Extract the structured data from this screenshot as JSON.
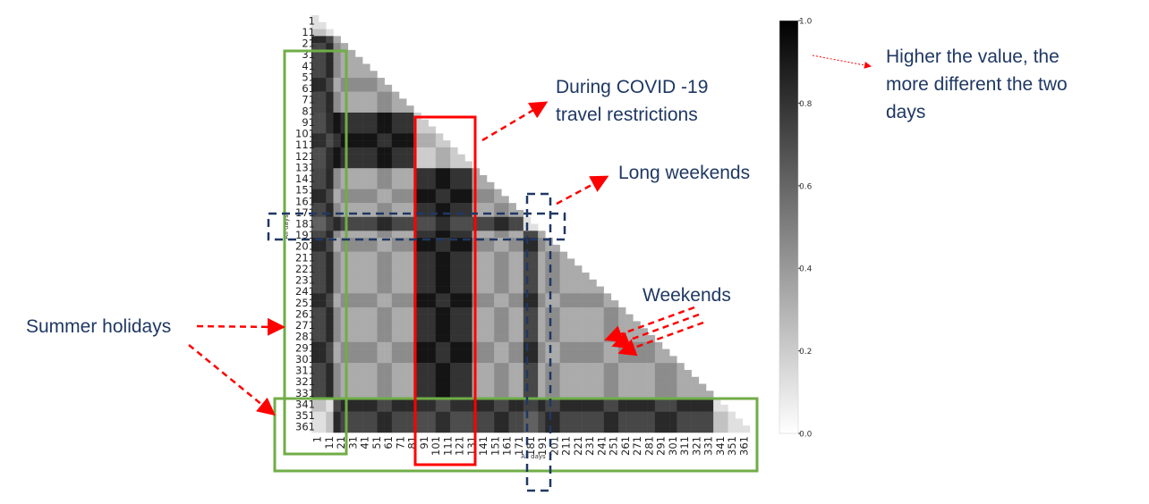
{
  "chart_data": {
    "type": "heatmap",
    "shape": "lower-triangle",
    "xlabel": "All days",
    "ylabel": "All days",
    "tick_labels": [
      "1",
      "11",
      "21",
      "31",
      "41",
      "51",
      "61",
      "71",
      "81",
      "91",
      "101",
      "111",
      "121",
      "131",
      "141",
      "151",
      "161",
      "171",
      "181",
      "191",
      "201",
      "211",
      "221",
      "231",
      "241",
      "251",
      "261",
      "271",
      "281",
      "291",
      "301",
      "311",
      "321",
      "331",
      "341",
      "351",
      "361"
    ],
    "day_range": [
      1,
      365
    ],
    "colorbar": {
      "min": 0.0,
      "max": 1.0,
      "ticks": [
        "0.0",
        "0.2",
        "0.4",
        "0.6",
        "0.8",
        "1.0"
      ],
      "colormap": "white-to-black"
    },
    "weekly_cycle_days": 7,
    "regions": [
      {
        "name": "Summer holidays",
        "days": [
          1,
          21
        ]
      },
      {
        "name": "Summer holidays",
        "days": [
          335,
          365
        ]
      },
      {
        "name": "During COVID -19 travel restrictions",
        "days": [
          88,
          133
        ]
      },
      {
        "name": "Long weekends",
        "days": [
          177,
          190
        ]
      }
    ]
  },
  "annotations": {
    "covid": [
      "During COVID -19",
      "travel restrictions"
    ],
    "long_weekends": "Long weekends",
    "weekends": "Weekends",
    "summer": "Summer holidays",
    "higher": [
      "Higher the value, the",
      "more different the two",
      "days"
    ]
  },
  "colors": {
    "green_box": "#70ad47",
    "red_box": "#ff0000",
    "blue_dash": "#1f3864",
    "arrow": "#ff0000",
    "text": "#1f3864"
  }
}
